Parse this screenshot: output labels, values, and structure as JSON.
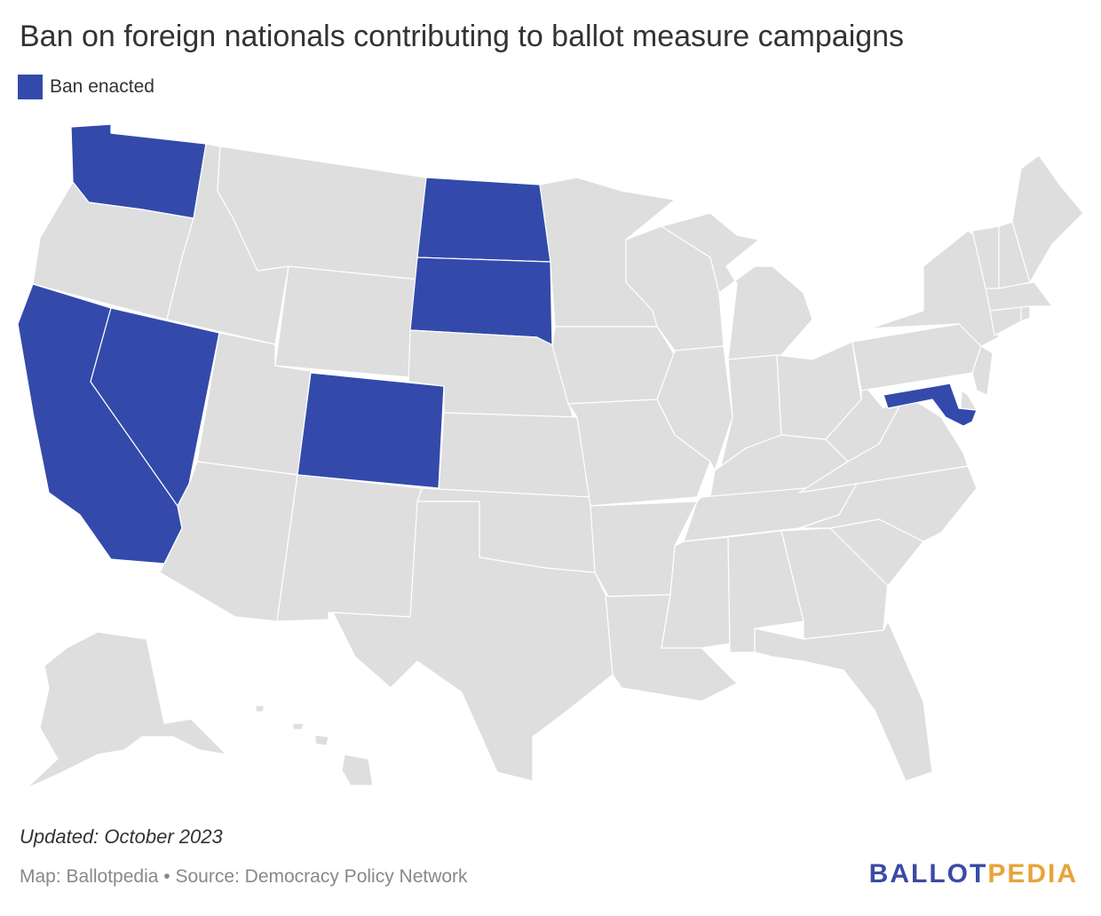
{
  "title": "Ban on foreign nationals contributing to ballot measure campaigns",
  "legend": {
    "label": "Ban enacted",
    "color": "#334aab"
  },
  "colors": {
    "enacted": "#334aab",
    "other": "#dedede",
    "border": "#ffffff"
  },
  "map": {
    "enacted_states": [
      "WA",
      "CA",
      "NV",
      "CO",
      "ND",
      "SD",
      "MD"
    ]
  },
  "updated": "Updated: October 2023",
  "footer": "Map: Ballotpedia • Source: Democracy Policy Network",
  "brand": {
    "part1": "BALLOT",
    "part2": "PEDIA"
  }
}
